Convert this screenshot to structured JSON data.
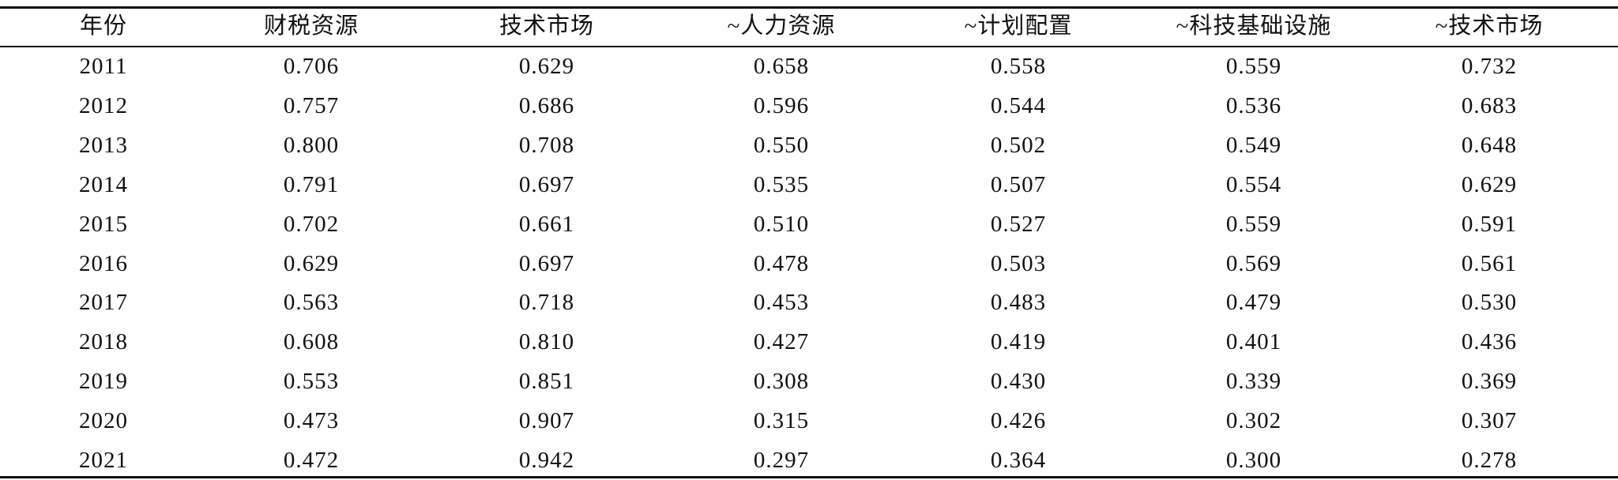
{
  "table": {
    "header": [
      "年份",
      "财税资源",
      "技术市场",
      "~人力资源",
      "~计划配置",
      "~科技基础设施",
      "~技术市场"
    ],
    "rows": [
      [
        "2011",
        "0.706",
        "0.629",
        "0.658",
        "0.558",
        "0.559",
        "0.732"
      ],
      [
        "2012",
        "0.757",
        "0.686",
        "0.596",
        "0.544",
        "0.536",
        "0.683"
      ],
      [
        "2013",
        "0.800",
        "0.708",
        "0.550",
        "0.502",
        "0.549",
        "0.648"
      ],
      [
        "2014",
        "0.791",
        "0.697",
        "0.535",
        "0.507",
        "0.554",
        "0.629"
      ],
      [
        "2015",
        "0.702",
        "0.661",
        "0.510",
        "0.527",
        "0.559",
        "0.591"
      ],
      [
        "2016",
        "0.629",
        "0.697",
        "0.478",
        "0.503",
        "0.569",
        "0.561"
      ],
      [
        "2017",
        "0.563",
        "0.718",
        "0.453",
        "0.483",
        "0.479",
        "0.530"
      ],
      [
        "2018",
        "0.608",
        "0.810",
        "0.427",
        "0.419",
        "0.401",
        "0.436"
      ],
      [
        "2019",
        "0.553",
        "0.851",
        "0.308",
        "0.430",
        "0.339",
        "0.369"
      ],
      [
        "2020",
        "0.473",
        "0.907",
        "0.315",
        "0.426",
        "0.302",
        "0.307"
      ],
      [
        "2021",
        "0.472",
        "0.942",
        "0.297",
        "0.364",
        "0.300",
        "0.278"
      ]
    ]
  }
}
